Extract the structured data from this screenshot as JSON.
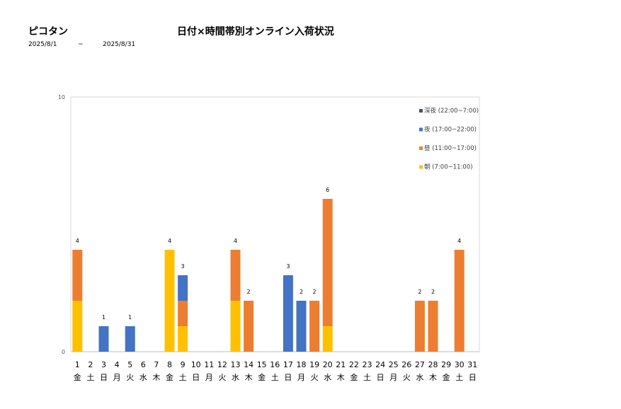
{
  "header": {
    "store_name": "ピコタン",
    "chart_title": "日付×時間帯別オンライン入荷状況",
    "date_from": "2025/8/1",
    "tilde": "~",
    "date_to": "2025/8/31"
  },
  "colors": {
    "deep_night": "#44546A",
    "night": "#4472C4",
    "day": "#ED7D31",
    "morning": "#FFC000",
    "axis": "#D9D9D9"
  },
  "chart_data": {
    "type": "bar",
    "stacked": true,
    "title": "日付×時間帯別オンライン入荷状況",
    "ylim": [
      0,
      10
    ],
    "y_ticks": [
      "0",
      "10"
    ],
    "legend_position": "top-right",
    "categories": [
      "1",
      "2",
      "3",
      "4",
      "5",
      "6",
      "7",
      "8",
      "9",
      "10",
      "11",
      "12",
      "13",
      "14",
      "15",
      "16",
      "17",
      "18",
      "19",
      "20",
      "21",
      "22",
      "23",
      "24",
      "25",
      "26",
      "27",
      "28",
      "29",
      "30",
      "31"
    ],
    "weekdays": [
      "金",
      "土",
      "日",
      "月",
      "火",
      "水",
      "木",
      "金",
      "土",
      "日",
      "月",
      "火",
      "水",
      "木",
      "金",
      "土",
      "日",
      "月",
      "火",
      "水",
      "木",
      "金",
      "土",
      "日",
      "月",
      "火",
      "水",
      "木",
      "金",
      "土",
      "日"
    ],
    "series": [
      {
        "name": "朝 (7:00~11:00)",
        "color": "#FFC000",
        "values": [
          2,
          0,
          0,
          0,
          0,
          0,
          0,
          4,
          1,
          0,
          0,
          0,
          2,
          0,
          0,
          0,
          0,
          0,
          0,
          1,
          0,
          0,
          0,
          0,
          0,
          0,
          0,
          0,
          0,
          0,
          0
        ]
      },
      {
        "name": "昼 (11:00~17:00)",
        "color": "#ED7D31",
        "values": [
          2,
          0,
          0,
          0,
          0,
          0,
          0,
          0,
          1,
          0,
          0,
          0,
          2,
          2,
          0,
          0,
          0,
          0,
          2,
          5,
          0,
          0,
          0,
          0,
          0,
          0,
          2,
          2,
          0,
          4,
          0
        ]
      },
      {
        "name": "夜 (17:00~22:00)",
        "color": "#4472C4",
        "values": [
          0,
          0,
          1,
          0,
          1,
          0,
          0,
          0,
          1,
          0,
          0,
          0,
          0,
          0,
          0,
          0,
          3,
          2,
          0,
          0,
          0,
          0,
          0,
          0,
          0,
          0,
          0,
          0,
          0,
          0,
          0
        ]
      },
      {
        "name": "深夜 (22:00~7:00)",
        "color": "#44546A",
        "values": [
          0,
          0,
          0,
          0,
          0,
          0,
          0,
          0,
          0,
          0,
          0,
          0,
          0,
          0,
          0,
          0,
          0,
          0,
          0,
          0,
          0,
          0,
          0,
          0,
          0,
          0,
          0,
          0,
          0,
          0,
          0
        ]
      }
    ],
    "totals": [
      4,
      0,
      1,
      0,
      1,
      0,
      0,
      4,
      3,
      0,
      0,
      0,
      4,
      2,
      0,
      0,
      3,
      2,
      2,
      6,
      0,
      0,
      0,
      0,
      0,
      0,
      2,
      2,
      0,
      4,
      0
    ]
  }
}
